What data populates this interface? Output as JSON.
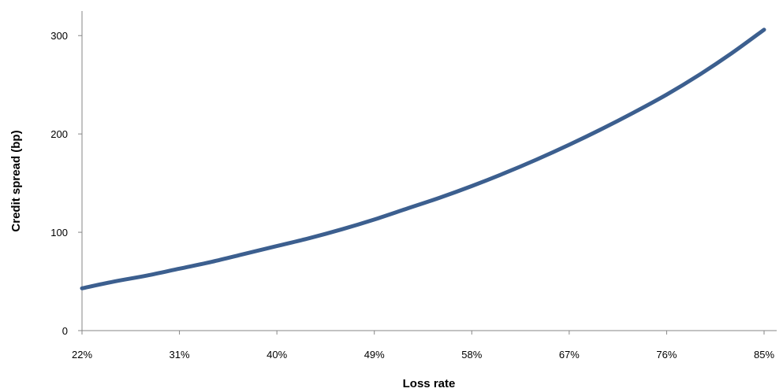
{
  "chart_data": {
    "type": "line",
    "title": "",
    "xlabel": "Loss rate",
    "ylabel": "Credit spread (bp)",
    "x_ticks": [
      "22%",
      "31%",
      "40%",
      "49%",
      "58%",
      "67%",
      "76%",
      "85%"
    ],
    "xlim": [
      0.22,
      0.85
    ],
    "ylim": [
      0,
      325
    ],
    "y_ticks": [
      0,
      100,
      200,
      300
    ],
    "grid": false,
    "legend": "none",
    "series": [
      {
        "color": "#3c5f8f",
        "x": [
          0.22,
          0.25,
          0.28,
          0.31,
          0.34,
          0.37,
          0.4,
          0.43,
          0.46,
          0.49,
          0.52,
          0.55,
          0.58,
          0.61,
          0.64,
          0.67,
          0.7,
          0.73,
          0.76,
          0.79,
          0.82,
          0.85
        ],
        "y": [
          43,
          50,
          56,
          63,
          70,
          78,
          86,
          94,
          103,
          113,
          124,
          135,
          147,
          160,
          174,
          189,
          205,
          222,
          240,
          260,
          282,
          306
        ]
      }
    ]
  }
}
